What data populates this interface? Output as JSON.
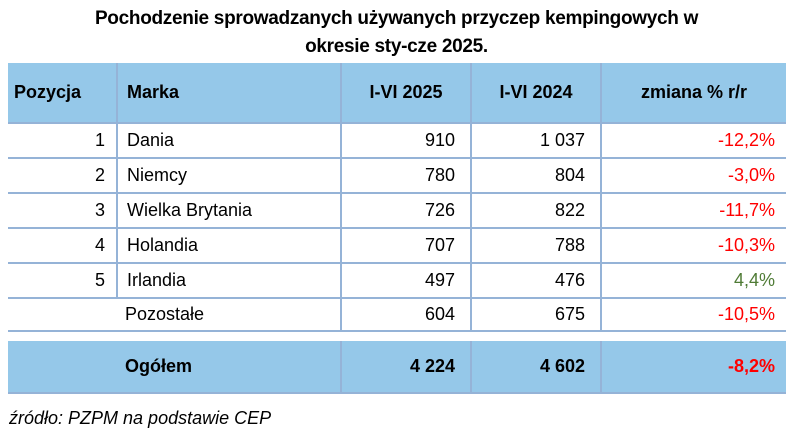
{
  "title": {
    "line1": "Pochodzenie sprowadzanych używanych przyczep kempingowych w",
    "line2": "okresie sty-cze 2025."
  },
  "table": {
    "columns": {
      "pozycja": "Pozycja",
      "marka": "Marka",
      "y2025": "I-VI 2025",
      "y2024": "I-VI 2024",
      "change": "zmiana % r/r"
    },
    "rows": [
      {
        "pozycja": "1",
        "marka": "Dania",
        "y2025": "910",
        "y2024": "1 037",
        "change": "-12,2%",
        "trend": "down"
      },
      {
        "pozycja": "2",
        "marka": "Niemcy",
        "y2025": "780",
        "y2024": "804",
        "change": "-3,0%",
        "trend": "down"
      },
      {
        "pozycja": "3",
        "marka": "Wielka Brytania",
        "y2025": "726",
        "y2024": "822",
        "change": "-11,7%",
        "trend": "down"
      },
      {
        "pozycja": "4",
        "marka": "Holandia",
        "y2025": "707",
        "y2024": "788",
        "change": "-10,3%",
        "trend": "down"
      },
      {
        "pozycja": "5",
        "marka": "Irlandia",
        "y2025": "497",
        "y2024": "476",
        "change": "4,4%",
        "trend": "up"
      },
      {
        "pozycja": "",
        "marka": "Pozostałe",
        "y2025": "604",
        "y2024": "675",
        "change": "-10,5%",
        "trend": "down"
      }
    ],
    "total": {
      "marka": "Ogółem",
      "y2025": "4 224",
      "y2024": "4 602",
      "change": "-8,2%",
      "trend": "down"
    }
  },
  "footer": {
    "source": "źródło: PZPM na podstawie CEP"
  },
  "colors": {
    "header_bg": "#95C8E9",
    "border": "#95B3D7",
    "negative": "#FF0000",
    "positive": "#4F7B35"
  }
}
